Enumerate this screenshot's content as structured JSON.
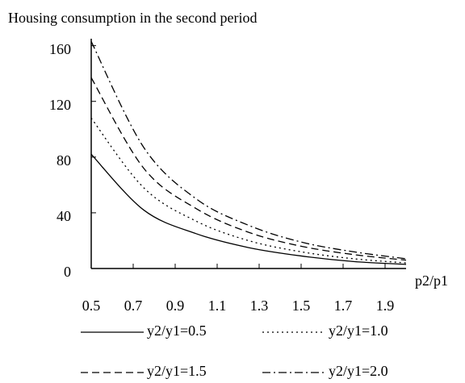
{
  "chart_data": {
    "type": "line",
    "title": "Housing consumption in the second period",
    "xlabel": "p2/p1",
    "x": [
      0.5,
      0.75,
      1.0,
      1.25,
      1.5,
      1.75,
      2.0
    ],
    "series": [
      {
        "name": "y2/y1=0.5",
        "color": "#000000",
        "dash": "solid",
        "values": [
          82,
          42,
          25,
          15,
          9,
          5,
          3
        ]
      },
      {
        "name": "y2/y1=1.0",
        "color": "#000000",
        "dash": "dotted",
        "values": [
          108,
          58,
          34,
          20,
          12,
          7,
          4
        ]
      },
      {
        "name": "y2/y1=1.5",
        "color": "#000000",
        "dash": "dashed",
        "values": [
          137,
          72,
          43,
          26,
          16,
          10,
          6
        ]
      },
      {
        "name": "y2/y1=2.0",
        "color": "#000000",
        "dash": "dashdot",
        "values": [
          163,
          87,
          50,
          31,
          19,
          12,
          7
        ]
      }
    ],
    "xlim": [
      0.5,
      2.0
    ],
    "xticks": [
      0.5,
      0.7,
      0.9,
      1.1,
      1.3,
      1.5,
      1.7,
      1.9
    ],
    "ylim": [
      0,
      165
    ],
    "yticks": [
      0,
      40,
      80,
      120,
      160
    ],
    "grid": false
  }
}
